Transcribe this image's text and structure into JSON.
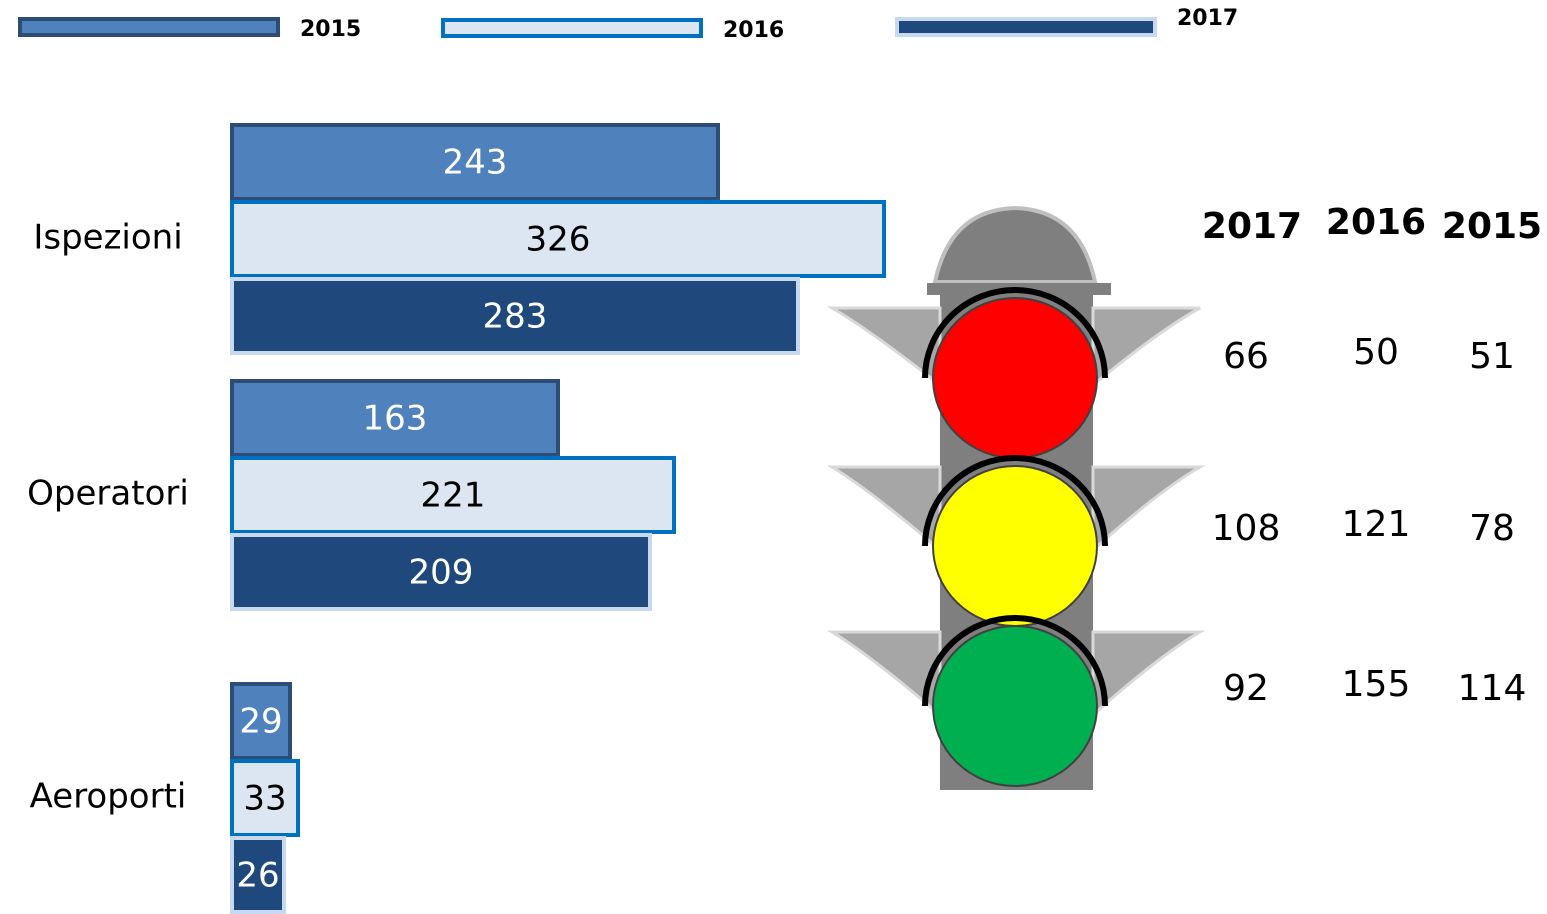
{
  "chart_data": {
    "type": "bar",
    "orientation": "horizontal",
    "categories": [
      "Ispezioni",
      "Operatori",
      "Aeroporti"
    ],
    "series": [
      {
        "name": "2015",
        "color": "#4f81bd",
        "border": "#2c4d75",
        "values": [
          243,
          163,
          29
        ]
      },
      {
        "name": "2016",
        "color": "#dce6f2",
        "border": "#0070c0",
        "values": [
          326,
          221,
          33
        ]
      },
      {
        "name": "2017",
        "color": "#1f497d",
        "border": "#c6d9f1",
        "values": [
          283,
          209,
          26
        ]
      }
    ]
  },
  "traffic_light": {
    "columns": [
      "2017",
      "2016",
      "2015"
    ],
    "lights": [
      "#ff0000",
      "#ffff00",
      "#00b050"
    ],
    "rows": [
      [
        66,
        50,
        51
      ],
      [
        108,
        121,
        78
      ],
      [
        92,
        155,
        114
      ]
    ]
  }
}
